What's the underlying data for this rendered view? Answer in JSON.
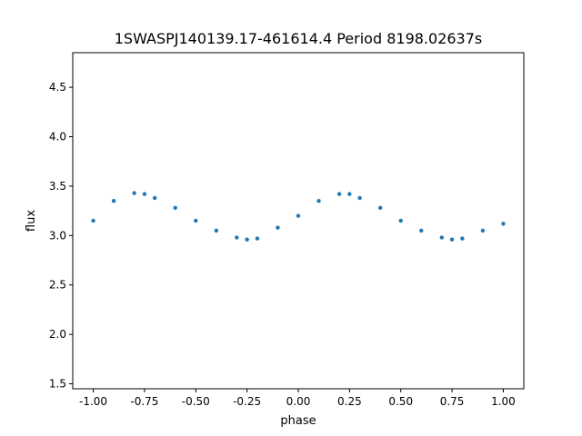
{
  "chart_data": {
    "type": "scatter",
    "title": "1SWASPJ140139.17-461614.4 Period 8198.02637s",
    "xlabel": "phase",
    "ylabel": "flux",
    "xlim": [
      -1.1,
      1.1
    ],
    "ylim": [
      1.45,
      4.85
    ],
    "xticks": [
      "-1.00",
      "-0.75",
      "-0.50",
      "-0.25",
      "0.00",
      "0.25",
      "0.50",
      "0.75",
      "1.00"
    ],
    "xtick_values": [
      -1.0,
      -0.75,
      -0.5,
      -0.25,
      0.0,
      0.25,
      0.5,
      0.75,
      1.0
    ],
    "yticks": [
      "1.5",
      "2.0",
      "2.5",
      "3.0",
      "3.5",
      "4.0",
      "4.5"
    ],
    "ytick_values": [
      1.5,
      2.0,
      2.5,
      3.0,
      3.5,
      4.0,
      4.5
    ],
    "grid": false,
    "marker_color": "#1f77b4",
    "series": [
      {
        "x": [
          -1.0,
          -0.9,
          -0.8,
          -0.75,
          -0.7,
          -0.6,
          -0.5,
          -0.4,
          -0.3,
          -0.25,
          -0.2,
          -0.1,
          0.0,
          0.1,
          0.2,
          0.25,
          0.3,
          0.4,
          0.5,
          0.6,
          0.7,
          0.75,
          0.8,
          0.9,
          1.0
        ],
        "y": [
          3.15,
          3.35,
          3.43,
          3.42,
          3.38,
          3.28,
          3.15,
          3.05,
          2.98,
          2.96,
          2.97,
          3.08,
          3.2,
          3.35,
          3.42,
          3.42,
          3.38,
          3.28,
          3.15,
          3.05,
          2.98,
          2.96,
          2.97,
          3.05,
          3.12
        ]
      }
    ]
  }
}
